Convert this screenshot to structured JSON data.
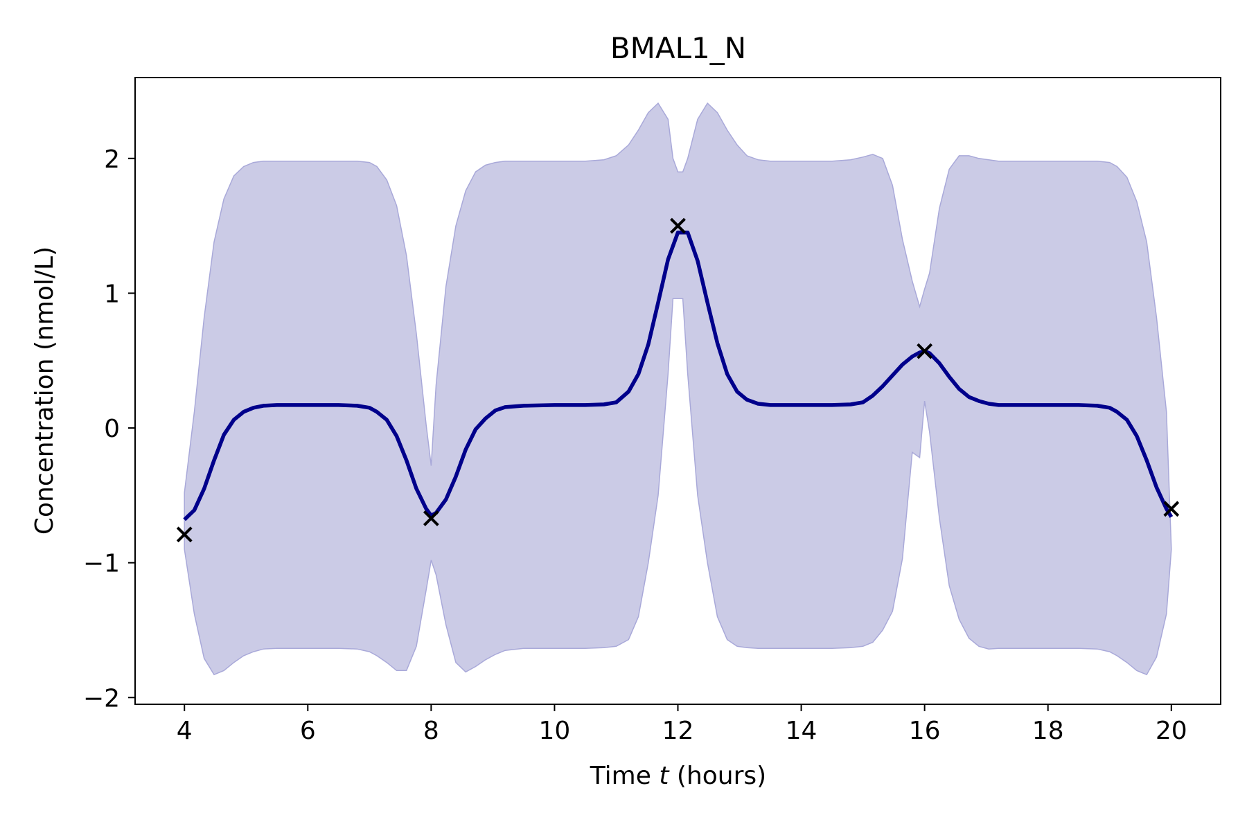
{
  "chart_data": {
    "type": "line",
    "title": "BMAL1_N",
    "xlabel": {
      "prefix": "Time ",
      "variable": "t",
      "suffix": " (hours)"
    },
    "ylabel": "Concentration (nmol/L)",
    "xlim": [
      3.2,
      20.8
    ],
    "ylim": [
      -2.05,
      2.6
    ],
    "x_ticks": [
      4,
      6,
      8,
      10,
      12,
      14,
      16,
      18,
      20
    ],
    "x_tick_labels": [
      "4",
      "6",
      "8",
      "10",
      "12",
      "14",
      "16",
      "18",
      "20"
    ],
    "y_ticks": [
      -2,
      -1,
      0,
      1,
      2
    ],
    "y_tick_labels": [
      "−2",
      "−1",
      "0",
      "1",
      "2"
    ],
    "grid": false,
    "colors": {
      "mean_line": "#00008b",
      "band_fill": "#cbcbe6",
      "band_edge": "#a9a9d9",
      "markers": "#000000"
    },
    "series": [
      {
        "kind": "mean",
        "x": [
          4.0,
          4.16,
          4.32,
          4.48,
          4.64,
          4.8,
          4.96,
          5.12,
          5.28,
          5.5,
          6.0,
          6.5,
          6.8,
          7.0,
          7.12,
          7.28,
          7.44,
          7.6,
          7.76,
          7.92,
          8.0,
          8.08,
          8.24,
          8.4,
          8.56,
          8.72,
          8.88,
          9.04,
          9.2,
          9.5,
          10.0,
          10.5,
          10.8,
          11.0,
          11.2,
          11.36,
          11.52,
          11.68,
          11.84,
          12.0,
          12.16,
          12.32,
          12.48,
          12.64,
          12.8,
          12.96,
          13.12,
          13.3,
          13.5,
          14.0,
          14.5,
          14.8,
          15.0,
          15.16,
          15.32,
          15.48,
          15.64,
          15.8,
          15.92,
          16.0,
          16.08,
          16.24,
          16.4,
          16.56,
          16.72,
          16.88,
          17.04,
          17.2,
          17.5,
          18.0,
          18.5,
          18.8,
          19.0,
          19.12,
          19.28,
          19.44,
          19.6,
          19.76,
          19.92,
          20.0
        ],
        "y": [
          -0.68,
          -0.61,
          -0.45,
          -0.24,
          -0.05,
          0.06,
          0.12,
          0.15,
          0.165,
          0.17,
          0.17,
          0.17,
          0.165,
          0.15,
          0.12,
          0.06,
          -0.06,
          -0.24,
          -0.45,
          -0.6,
          -0.65,
          -0.63,
          -0.53,
          -0.36,
          -0.16,
          -0.01,
          0.07,
          0.13,
          0.155,
          0.165,
          0.17,
          0.17,
          0.175,
          0.19,
          0.27,
          0.4,
          0.62,
          0.93,
          1.25,
          1.45,
          1.45,
          1.24,
          0.93,
          0.63,
          0.4,
          0.27,
          0.21,
          0.18,
          0.17,
          0.17,
          0.17,
          0.175,
          0.19,
          0.24,
          0.31,
          0.39,
          0.47,
          0.53,
          0.56,
          0.57,
          0.555,
          0.48,
          0.38,
          0.29,
          0.23,
          0.2,
          0.18,
          0.17,
          0.17,
          0.17,
          0.17,
          0.165,
          0.15,
          0.12,
          0.06,
          -0.06,
          -0.24,
          -0.44,
          -0.6,
          -0.66
        ]
      },
      {
        "kind": "band",
        "x": [
          4.0,
          4.16,
          4.32,
          4.48,
          4.64,
          4.8,
          4.96,
          5.12,
          5.28,
          5.5,
          6.0,
          6.5,
          6.8,
          7.0,
          7.12,
          7.28,
          7.44,
          7.6,
          7.76,
          7.92,
          8.0,
          8.08,
          8.24,
          8.4,
          8.56,
          8.72,
          8.88,
          9.04,
          9.2,
          9.5,
          10.0,
          10.5,
          10.8,
          11.0,
          11.2,
          11.36,
          11.52,
          11.68,
          11.84,
          11.92,
          12.0,
          12.08,
          12.16,
          12.32,
          12.48,
          12.64,
          12.8,
          12.96,
          13.12,
          13.3,
          13.5,
          14.0,
          14.5,
          14.8,
          15.0,
          15.16,
          15.32,
          15.48,
          15.64,
          15.8,
          15.92,
          16.0,
          16.08,
          16.24,
          16.4,
          16.56,
          16.72,
          16.88,
          17.04,
          17.2,
          17.5,
          18.0,
          18.5,
          18.8,
          19.0,
          19.12,
          19.28,
          19.44,
          19.6,
          19.76,
          19.92,
          20.0
        ],
        "upper": [
          -0.48,
          0.12,
          0.82,
          1.38,
          1.7,
          1.87,
          1.94,
          1.97,
          1.98,
          1.98,
          1.98,
          1.98,
          1.98,
          1.97,
          1.94,
          1.84,
          1.65,
          1.28,
          0.7,
          0.02,
          -0.28,
          0.32,
          1.05,
          1.5,
          1.76,
          1.9,
          1.95,
          1.97,
          1.98,
          1.98,
          1.98,
          1.98,
          1.99,
          2.02,
          2.1,
          2.21,
          2.34,
          2.41,
          2.29,
          2.0,
          1.9,
          1.9,
          2.0,
          2.29,
          2.41,
          2.34,
          2.21,
          2.1,
          2.02,
          1.99,
          1.98,
          1.98,
          1.98,
          1.99,
          2.01,
          2.03,
          2.0,
          1.8,
          1.4,
          1.09,
          0.9,
          1.03,
          1.15,
          1.63,
          1.92,
          2.02,
          2.02,
          2.0,
          1.99,
          1.98,
          1.98,
          1.98,
          1.98,
          1.98,
          1.97,
          1.94,
          1.86,
          1.68,
          1.38,
          0.82,
          0.12,
          -0.9
        ],
        "lower": [
          -0.9,
          -1.38,
          -1.71,
          -1.83,
          -1.8,
          -1.74,
          -1.69,
          -1.66,
          -1.64,
          -1.635,
          -1.635,
          -1.635,
          -1.64,
          -1.66,
          -1.69,
          -1.74,
          -1.8,
          -1.8,
          -1.62,
          -1.2,
          -0.98,
          -1.09,
          -1.46,
          -1.74,
          -1.81,
          -1.77,
          -1.72,
          -1.68,
          -1.65,
          -1.635,
          -1.635,
          -1.635,
          -1.63,
          -1.62,
          -1.57,
          -1.4,
          -1.0,
          -0.5,
          0.4,
          0.96,
          0.96,
          0.96,
          0.4,
          -0.5,
          -1.0,
          -1.4,
          -1.57,
          -1.62,
          -1.63,
          -1.635,
          -1.635,
          -1.635,
          -1.635,
          -1.63,
          -1.62,
          -1.59,
          -1.5,
          -1.36,
          -0.97,
          -0.18,
          -0.22,
          0.2,
          -0.03,
          -0.67,
          -1.17,
          -1.42,
          -1.56,
          -1.62,
          -1.64,
          -1.635,
          -1.635,
          -1.635,
          -1.635,
          -1.64,
          -1.66,
          -1.69,
          -1.74,
          -1.8,
          -1.83,
          -1.7,
          -1.38,
          -0.9
        ]
      }
    ],
    "markers": {
      "symbol": "×",
      "x": [
        4,
        8,
        12,
        16,
        20
      ],
      "y": [
        -0.79,
        -0.67,
        1.5,
        0.57,
        -0.6
      ]
    }
  }
}
